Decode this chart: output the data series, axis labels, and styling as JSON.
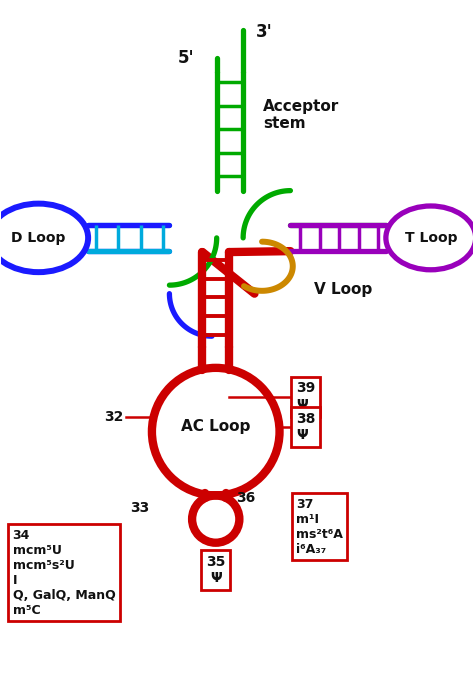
{
  "bg_color": "#ffffff",
  "colors": {
    "green": "#00aa00",
    "blue": "#1a1aff",
    "cyan": "#00aadd",
    "purple": "#9900bb",
    "orange": "#cc8800",
    "red": "#cc0000",
    "black": "#111111"
  },
  "labels": {
    "three_prime": "3'",
    "five_prime": "5'",
    "acceptor_stem": "Acceptor\nstem",
    "d_loop": "D Loop",
    "t_loop": "T Loop",
    "v_loop": "V Loop",
    "ac_loop": "AC Loop"
  },
  "figsize": [
    4.74,
    6.79
  ],
  "dpi": 100,
  "xlim": [
    0,
    10
  ],
  "ylim": [
    0,
    14.3
  ]
}
